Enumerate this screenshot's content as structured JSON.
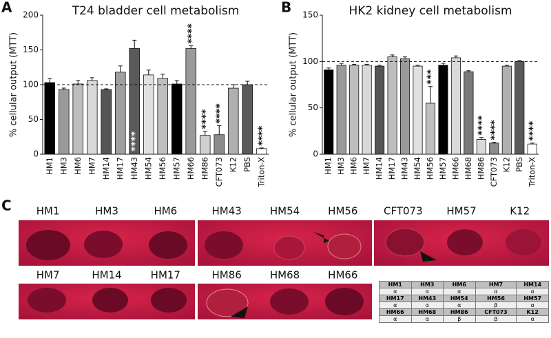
{
  "chart_data": [
    {
      "type": "bar",
      "panel": "A",
      "title": "T24 bladder cell metabolism",
      "ylabel": "% cellular output (MTT)",
      "categories": [
        "HM1",
        "HM3",
        "HM6",
        "HM7",
        "HM14",
        "HM17",
        "HM43",
        "HM54",
        "HM56",
        "HM57",
        "HM66",
        "HM86",
        "CFT073",
        "K12",
        "PBS",
        "Triton-X"
      ],
      "values": [
        103,
        93,
        101,
        106,
        93,
        118,
        152,
        114,
        109,
        101,
        152,
        27,
        28,
        95,
        100,
        8
      ],
      "errors": [
        6,
        2,
        5,
        4,
        1,
        9,
        12,
        7,
        6,
        5,
        4,
        6,
        13,
        5,
        5,
        1
      ],
      "colors": [
        "#000000",
        "#9a9a9a",
        "#bdbdbd",
        "#d9d9d9",
        "#555555",
        "#a0a0a0",
        "#5a5a5a",
        "#e0e0e0",
        "#bfbfbf",
        "#000000",
        "#9a9a9a",
        "#d0d0d0",
        "#8c8c8c",
        "#b0b0b0",
        "#5a5a5a",
        "#ffffff"
      ],
      "significance": [
        null,
        null,
        null,
        null,
        null,
        null,
        "****",
        null,
        null,
        null,
        "****",
        "****",
        "****",
        null,
        null,
        "****"
      ],
      "reference_line": 100,
      "ylim": [
        0,
        200
      ],
      "yticks": [
        0,
        50,
        100,
        150,
        200
      ]
    },
    {
      "type": "bar",
      "panel": "B",
      "title": "HK2 kidney cell metabolism",
      "ylabel": "% cellular output (MTT)",
      "categories": [
        "HM1",
        "HM3",
        "HM6",
        "HM7",
        "HM14",
        "HM17",
        "HM43",
        "HM54",
        "HM56",
        "HM57",
        "HM66",
        "HM68",
        "HM86",
        "CFT073",
        "K12",
        "PBS",
        "Triton-X"
      ],
      "values": [
        91,
        96,
        96,
        96,
        95,
        105,
        103,
        95,
        55,
        96,
        104,
        89,
        16,
        12,
        95,
        100,
        11
      ],
      "errors": [
        2,
        2,
        1,
        1,
        1,
        2,
        2,
        1,
        18,
        2,
        2,
        1,
        2,
        1,
        1,
        1,
        1
      ],
      "colors": [
        "#000000",
        "#9a9a9a",
        "#bdbdbd",
        "#d9d9d9",
        "#555555",
        "#bdbdbd",
        "#9a9a9a",
        "#e0e0e0",
        "#bfbfbf",
        "#000000",
        "#d9d9d9",
        "#7a7a7a",
        "#d9d9d9",
        "#8c8c8c",
        "#b0b0b0",
        "#5a5a5a",
        "#ffffff"
      ],
      "significance": [
        null,
        null,
        null,
        null,
        null,
        null,
        null,
        null,
        "***",
        null,
        null,
        null,
        "****",
        "****",
        null,
        null,
        "****"
      ],
      "reference_line": 100,
      "ylim": [
        0,
        150
      ],
      "yticks": [
        0,
        50,
        100,
        150
      ]
    }
  ],
  "panel_c": {
    "label": "C",
    "plates": [
      [
        "HM1",
        "HM3",
        "HM6"
      ],
      [
        "HM43",
        "HM54",
        "HM56"
      ],
      [
        "CFT073",
        "HM57",
        "K12"
      ],
      [
        "HM7",
        "HM14",
        "HM17"
      ],
      [
        "HM86",
        "HM68",
        "HM66"
      ]
    ],
    "table": [
      [
        "HM1",
        "HM3",
        "HM6",
        "HM7",
        "HM14"
      ],
      [
        "α",
        "α",
        "α",
        "α",
        "α"
      ],
      [
        "HM17",
        "HM43",
        "HM54",
        "HM56",
        "HM57"
      ],
      [
        "α",
        "α",
        "α",
        "β",
        "α"
      ],
      [
        "HM66",
        "HM68",
        "HM86",
        "CFT073",
        "K12"
      ],
      [
        "α",
        "α",
        "β",
        "β",
        "α"
      ]
    ]
  }
}
